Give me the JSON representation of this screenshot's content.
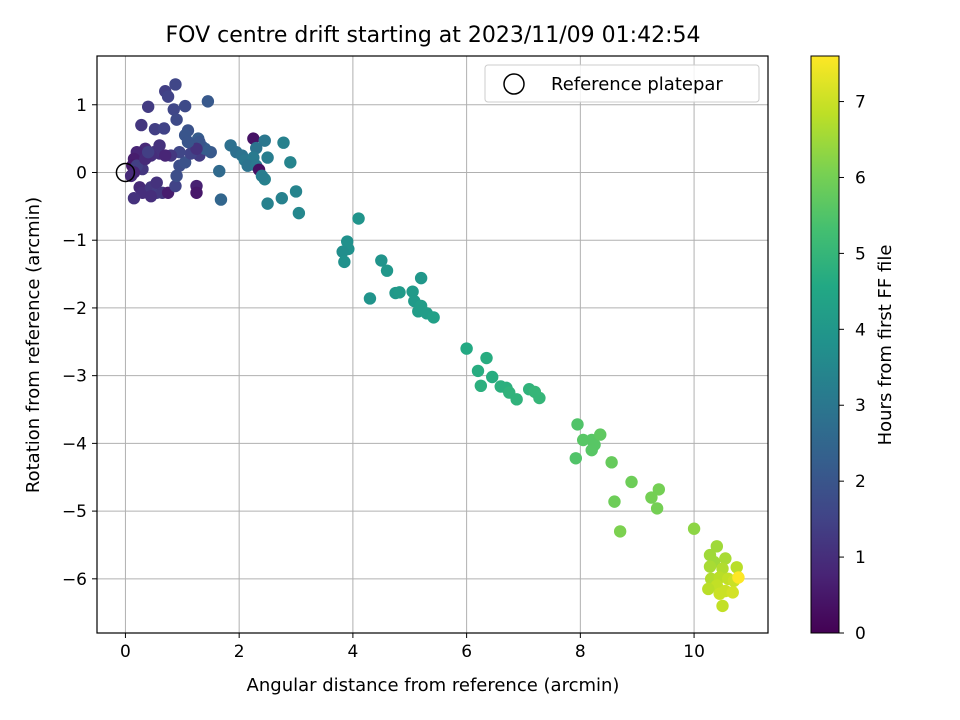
{
  "chart_data": {
    "type": "scatter",
    "title": "FOV centre drift starting at 2023/11/09 01:42:54",
    "xlabel": "Angular distance from reference (arcmin)",
    "ylabel": "Rotation from reference (arcmin)",
    "xlim": [
      -0.5,
      11.3
    ],
    "ylim": [
      -6.8,
      1.72
    ],
    "xticks": [
      0,
      2,
      4,
      6,
      8,
      10
    ],
    "yticks": [
      -6,
      -5,
      -4,
      -3,
      -2,
      -1,
      0,
      1
    ],
    "grid": true,
    "legend": {
      "position": "top-right",
      "entries": [
        "Reference platepar"
      ]
    },
    "reference_point": {
      "x": 0,
      "y": 0,
      "label": "Reference platepar"
    },
    "colorbar": {
      "label": "Hours from first FF file",
      "range": [
        0,
        7.6
      ],
      "ticks": [
        0,
        1,
        2,
        3,
        4,
        5,
        6,
        7
      ],
      "colormap": "viridis"
    },
    "points": [
      {
        "x": 0.88,
        "y": 1.3,
        "h": 1.6
      },
      {
        "x": 1.45,
        "y": 1.05,
        "h": 2.1
      },
      {
        "x": 0.7,
        "y": 1.2,
        "h": 1.4
      },
      {
        "x": 0.75,
        "y": 1.12,
        "h": 1.5
      },
      {
        "x": 0.4,
        "y": 0.97,
        "h": 1.3
      },
      {
        "x": 1.05,
        "y": 0.98,
        "h": 1.7
      },
      {
        "x": 0.85,
        "y": 0.93,
        "h": 1.6
      },
      {
        "x": 0.9,
        "y": 0.78,
        "h": 1.7
      },
      {
        "x": 0.28,
        "y": 0.7,
        "h": 1.2
      },
      {
        "x": 0.52,
        "y": 0.64,
        "h": 1.4
      },
      {
        "x": 0.68,
        "y": 0.65,
        "h": 1.5
      },
      {
        "x": 1.1,
        "y": 0.62,
        "h": 1.9
      },
      {
        "x": 1.05,
        "y": 0.55,
        "h": 2.0
      },
      {
        "x": 1.28,
        "y": 0.5,
        "h": 2.2
      },
      {
        "x": 2.25,
        "y": 0.5,
        "h": 0.4
      },
      {
        "x": 2.45,
        "y": 0.47,
        "h": 3.0
      },
      {
        "x": 2.78,
        "y": 0.44,
        "h": 3.3
      },
      {
        "x": 1.85,
        "y": 0.4,
        "h": 2.8
      },
      {
        "x": 2.3,
        "y": 0.36,
        "h": 2.9
      },
      {
        "x": 1.95,
        "y": 0.3,
        "h": 2.8
      },
      {
        "x": 2.05,
        "y": 0.25,
        "h": 2.9
      },
      {
        "x": 2.1,
        "y": 0.18,
        "h": 3.0
      },
      {
        "x": 2.25,
        "y": 0.22,
        "h": 3.1
      },
      {
        "x": 2.5,
        "y": 0.22,
        "h": 3.2
      },
      {
        "x": 2.15,
        "y": 0.1,
        "h": 2.9
      },
      {
        "x": 2.3,
        "y": 0.1,
        "h": 3.0
      },
      {
        "x": 2.9,
        "y": 0.15,
        "h": 3.4
      },
      {
        "x": 2.35,
        "y": 0.04,
        "h": 0.3
      },
      {
        "x": 2.45,
        "y": -0.1,
        "h": 3.3
      },
      {
        "x": 2.4,
        "y": -0.05,
        "h": 3.2
      },
      {
        "x": 3.0,
        "y": -0.28,
        "h": 3.4
      },
      {
        "x": 2.75,
        "y": -0.38,
        "h": 3.3
      },
      {
        "x": 2.5,
        "y": -0.46,
        "h": 3.3
      },
      {
        "x": 3.05,
        "y": -0.6,
        "h": 3.5
      },
      {
        "x": 1.68,
        "y": -0.4,
        "h": 2.5
      },
      {
        "x": 1.65,
        "y": 0.02,
        "h": 2.6
      },
      {
        "x": 0.95,
        "y": 0.1,
        "h": 1.8
      },
      {
        "x": 1.05,
        "y": 0.15,
        "h": 1.9
      },
      {
        "x": 1.2,
        "y": 0.3,
        "h": 2.0
      },
      {
        "x": 1.35,
        "y": 0.38,
        "h": 2.1
      },
      {
        "x": 1.3,
        "y": 0.25,
        "h": 1.3
      },
      {
        "x": 1.15,
        "y": 0.28,
        "h": 1.5
      },
      {
        "x": 0.95,
        "y": 0.3,
        "h": 1.6
      },
      {
        "x": 0.8,
        "y": 0.25,
        "h": 1.2
      },
      {
        "x": 0.6,
        "y": 0.28,
        "h": 1.0
      },
      {
        "x": 0.5,
        "y": 0.3,
        "h": 1.1
      },
      {
        "x": 0.35,
        "y": 0.35,
        "h": 0.9
      },
      {
        "x": 0.2,
        "y": 0.3,
        "h": 0.8
      },
      {
        "x": 0.25,
        "y": 0.15,
        "h": 0.7
      },
      {
        "x": 0.15,
        "y": 0.2,
        "h": 0.6
      },
      {
        "x": 0.12,
        "y": 0.1,
        "h": 0.5
      },
      {
        "x": 0.3,
        "y": 0.05,
        "h": 1.2
      },
      {
        "x": 0.45,
        "y": 0.25,
        "h": 1.0
      },
      {
        "x": 0.6,
        "y": 0.4,
        "h": 1.1
      },
      {
        "x": 0.2,
        "y": 0.1,
        "h": 1.4
      },
      {
        "x": 0.35,
        "y": 0.2,
        "h": 0.9
      },
      {
        "x": 0.4,
        "y": 0.3,
        "h": 1.4
      },
      {
        "x": 0.15,
        "y": 0.0,
        "h": 0.8
      },
      {
        "x": 0.1,
        "y": -0.05,
        "h": 0.9
      },
      {
        "x": 0.25,
        "y": -0.22,
        "h": 0.9
      },
      {
        "x": 0.3,
        "y": -0.3,
        "h": 1.0
      },
      {
        "x": 0.15,
        "y": -0.38,
        "h": 1.1
      },
      {
        "x": 0.45,
        "y": -0.22,
        "h": 1.2
      },
      {
        "x": 0.55,
        "y": -0.3,
        "h": 1.3
      },
      {
        "x": 0.45,
        "y": -0.35,
        "h": 1.0
      },
      {
        "x": 0.55,
        "y": -0.15,
        "h": 1.1
      },
      {
        "x": 0.65,
        "y": -0.3,
        "h": 1.2
      },
      {
        "x": 0.75,
        "y": -0.3,
        "h": 0.6
      },
      {
        "x": 0.88,
        "y": -0.2,
        "h": 1.5
      },
      {
        "x": 0.9,
        "y": -0.05,
        "h": 1.8
      },
      {
        "x": 1.25,
        "y": -0.2,
        "h": 0.7
      },
      {
        "x": 1.25,
        "y": -0.3,
        "h": 0.5
      },
      {
        "x": 1.5,
        "y": 0.3,
        "h": 2.1
      },
      {
        "x": 1.4,
        "y": 0.35,
        "h": 2.2
      },
      {
        "x": 1.3,
        "y": 0.45,
        "h": 2.0
      },
      {
        "x": 1.25,
        "y": 0.35,
        "h": 1.1
      },
      {
        "x": 1.1,
        "y": 0.45,
        "h": 2.0
      },
      {
        "x": 0.7,
        "y": 0.25,
        "h": 0.8
      },
      {
        "x": 4.1,
        "y": -0.68,
        "h": 3.9
      },
      {
        "x": 3.9,
        "y": -1.02,
        "h": 3.8
      },
      {
        "x": 3.92,
        "y": -1.13,
        "h": 3.8
      },
      {
        "x": 3.82,
        "y": -1.17,
        "h": 3.7
      },
      {
        "x": 3.85,
        "y": -1.32,
        "h": 3.8
      },
      {
        "x": 4.5,
        "y": -1.3,
        "h": 3.9
      },
      {
        "x": 4.6,
        "y": -1.45,
        "h": 4.0
      },
      {
        "x": 5.2,
        "y": -1.56,
        "h": 4.0
      },
      {
        "x": 4.3,
        "y": -1.86,
        "h": 3.9
      },
      {
        "x": 4.75,
        "y": -1.78,
        "h": 4.0
      },
      {
        "x": 4.82,
        "y": -1.77,
        "h": 4.1
      },
      {
        "x": 5.05,
        "y": -1.76,
        "h": 4.1
      },
      {
        "x": 5.08,
        "y": -1.9,
        "h": 4.1
      },
      {
        "x": 5.2,
        "y": -1.97,
        "h": 4.2
      },
      {
        "x": 5.15,
        "y": -2.05,
        "h": 4.2
      },
      {
        "x": 5.3,
        "y": -2.08,
        "h": 4.2
      },
      {
        "x": 5.42,
        "y": -2.14,
        "h": 4.3
      },
      {
        "x": 6.0,
        "y": -2.6,
        "h": 4.6
      },
      {
        "x": 6.35,
        "y": -2.74,
        "h": 4.7
      },
      {
        "x": 6.2,
        "y": -2.93,
        "h": 4.7
      },
      {
        "x": 6.45,
        "y": -3.02,
        "h": 4.7
      },
      {
        "x": 6.25,
        "y": -3.15,
        "h": 4.8
      },
      {
        "x": 6.6,
        "y": -3.16,
        "h": 4.8
      },
      {
        "x": 6.7,
        "y": -3.18,
        "h": 4.8
      },
      {
        "x": 6.75,
        "y": -3.25,
        "h": 4.9
      },
      {
        "x": 6.88,
        "y": -3.35,
        "h": 4.9
      },
      {
        "x": 7.1,
        "y": -3.2,
        "h": 4.9
      },
      {
        "x": 7.2,
        "y": -3.24,
        "h": 5.0
      },
      {
        "x": 7.28,
        "y": -3.33,
        "h": 5.0
      },
      {
        "x": 7.95,
        "y": -3.72,
        "h": 5.5
      },
      {
        "x": 8.05,
        "y": -3.95,
        "h": 5.6
      },
      {
        "x": 8.2,
        "y": -3.95,
        "h": 5.6
      },
      {
        "x": 8.25,
        "y": -4.02,
        "h": 5.6
      },
      {
        "x": 8.35,
        "y": -3.87,
        "h": 5.7
      },
      {
        "x": 8.2,
        "y": -4.1,
        "h": 5.6
      },
      {
        "x": 7.92,
        "y": -4.22,
        "h": 5.5
      },
      {
        "x": 8.55,
        "y": -4.28,
        "h": 5.8
      },
      {
        "x": 8.9,
        "y": -4.57,
        "h": 5.9
      },
      {
        "x": 8.6,
        "y": -4.86,
        "h": 5.9
      },
      {
        "x": 9.38,
        "y": -4.68,
        "h": 6.0
      },
      {
        "x": 9.25,
        "y": -4.8,
        "h": 6.0
      },
      {
        "x": 9.35,
        "y": -4.96,
        "h": 6.0
      },
      {
        "x": 8.7,
        "y": -5.3,
        "h": 6.1
      },
      {
        "x": 10.0,
        "y": -5.26,
        "h": 6.3
      },
      {
        "x": 10.4,
        "y": -5.52,
        "h": 6.5
      },
      {
        "x": 10.28,
        "y": -5.65,
        "h": 6.5
      },
      {
        "x": 10.55,
        "y": -5.7,
        "h": 6.6
      },
      {
        "x": 10.35,
        "y": -5.75,
        "h": 6.5
      },
      {
        "x": 10.28,
        "y": -5.82,
        "h": 6.6
      },
      {
        "x": 10.5,
        "y": -5.85,
        "h": 6.7
      },
      {
        "x": 10.75,
        "y": -5.83,
        "h": 6.8
      },
      {
        "x": 10.3,
        "y": -6.0,
        "h": 6.7
      },
      {
        "x": 10.45,
        "y": -5.98,
        "h": 6.8
      },
      {
        "x": 10.6,
        "y": -6.0,
        "h": 6.9
      },
      {
        "x": 10.7,
        "y": -6.03,
        "h": 7.0
      },
      {
        "x": 10.78,
        "y": -5.98,
        "h": 7.6
      },
      {
        "x": 10.4,
        "y": -6.1,
        "h": 6.9
      },
      {
        "x": 10.25,
        "y": -6.15,
        "h": 6.8
      },
      {
        "x": 10.55,
        "y": -6.18,
        "h": 7.0
      },
      {
        "x": 10.68,
        "y": -6.2,
        "h": 7.1
      },
      {
        "x": 10.45,
        "y": -6.22,
        "h": 7.0
      },
      {
        "x": 10.5,
        "y": -6.4,
        "h": 6.9
      }
    ]
  }
}
